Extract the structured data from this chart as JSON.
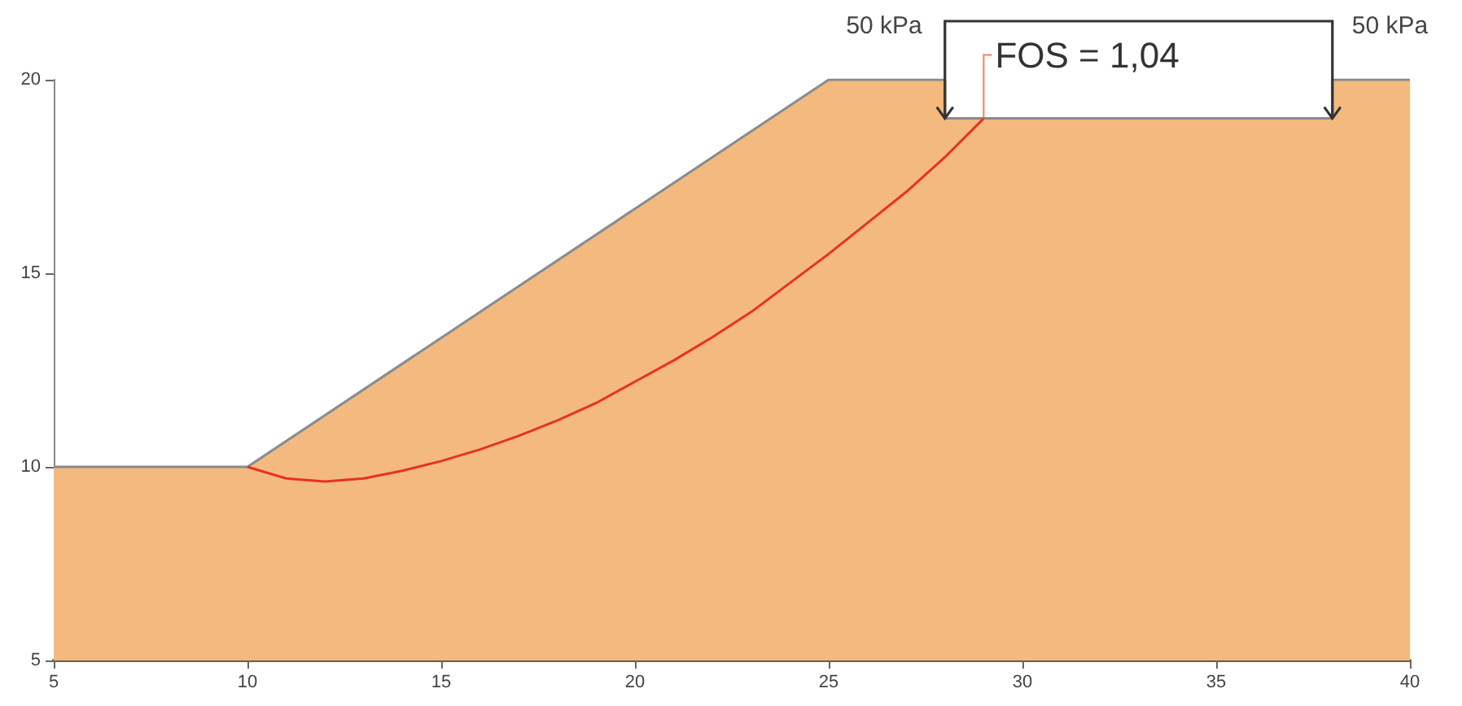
{
  "chart_data": {
    "type": "area",
    "xlim": [
      5,
      40
    ],
    "xticks": [
      5,
      10,
      15,
      20,
      25,
      30,
      35,
      40
    ],
    "ylim": [
      5,
      20
    ],
    "yticks": [
      5,
      10,
      15,
      20
    ],
    "grid": false,
    "marker": "none",
    "series": [
      {
        "color": "#f4b97f",
        "x": [
          5,
          10,
          25,
          28,
          28,
          38,
          38,
          40
        ],
        "values": [
          10,
          10,
          20,
          20,
          19,
          19,
          20,
          20
        ]
      },
      {
        "type": "line",
        "color": "#e8321e",
        "x": [
          10,
          11,
          12,
          13,
          14,
          15,
          16,
          17,
          18,
          19,
          20,
          21,
          22,
          23,
          24,
          25,
          26,
          27,
          28,
          29
        ],
        "values": [
          10,
          9.7,
          9.62,
          9.7,
          9.9,
          10.15,
          10.45,
          10.8,
          11.2,
          11.65,
          12.2,
          12.75,
          13.35,
          14,
          14.75,
          15.5,
          16.3,
          17.1,
          18,
          19
        ]
      }
    ],
    "annotations": [
      "50 kPa",
      "50 kPa",
      {
        "text": "FOS = 1,04",
        "x": 29,
        "y": 19
      }
    ]
  }
}
